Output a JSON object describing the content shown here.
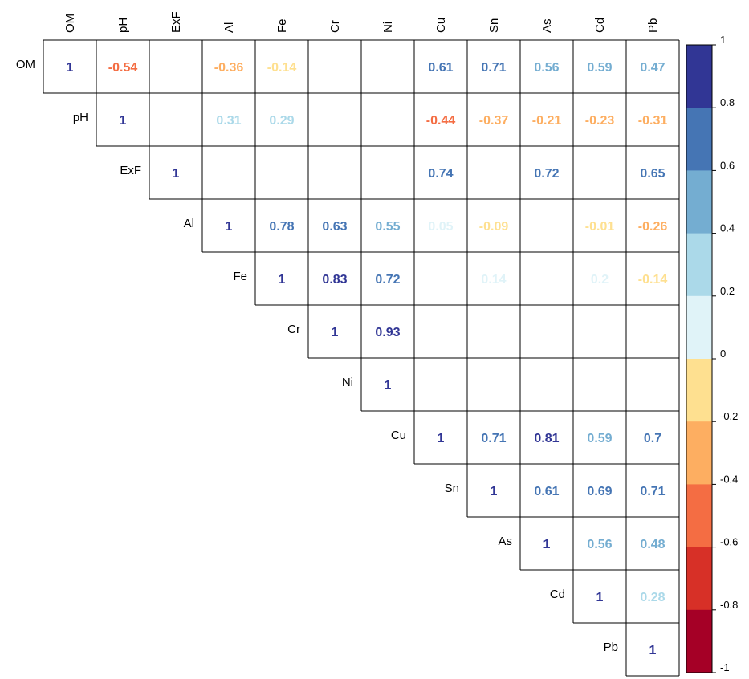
{
  "chart_data": {
    "type": "heatmap",
    "variables": [
      "OM",
      "pH",
      "ExF",
      "Al",
      "Fe",
      "Cr",
      "Ni",
      "Cu",
      "Sn",
      "As",
      "Cd",
      "Pb"
    ],
    "layout": "upper-triangle",
    "cells": [
      {
        "row": "OM",
        "col": "OM",
        "value": 1,
        "label": "1"
      },
      {
        "row": "OM",
        "col": "pH",
        "value": -0.54,
        "label": "-0.54"
      },
      {
        "row": "OM",
        "col": "Al",
        "value": -0.36,
        "label": "-0.36"
      },
      {
        "row": "OM",
        "col": "Fe",
        "value": -0.14,
        "label": "-0.14"
      },
      {
        "row": "OM",
        "col": "Cu",
        "value": 0.61,
        "label": "0.61"
      },
      {
        "row": "OM",
        "col": "Sn",
        "value": 0.71,
        "label": "0.71"
      },
      {
        "row": "OM",
        "col": "As",
        "value": 0.56,
        "label": "0.56"
      },
      {
        "row": "OM",
        "col": "Cd",
        "value": 0.59,
        "label": "0.59"
      },
      {
        "row": "OM",
        "col": "Pb",
        "value": 0.47,
        "label": "0.47"
      },
      {
        "row": "pH",
        "col": "pH",
        "value": 1,
        "label": "1"
      },
      {
        "row": "pH",
        "col": "Al",
        "value": 0.31,
        "label": "0.31"
      },
      {
        "row": "pH",
        "col": "Fe",
        "value": 0.29,
        "label": "0.29"
      },
      {
        "row": "pH",
        "col": "Cu",
        "value": -0.44,
        "label": "-0.44"
      },
      {
        "row": "pH",
        "col": "Sn",
        "value": -0.37,
        "label": "-0.37"
      },
      {
        "row": "pH",
        "col": "As",
        "value": -0.21,
        "label": "-0.21"
      },
      {
        "row": "pH",
        "col": "Cd",
        "value": -0.23,
        "label": "-0.23"
      },
      {
        "row": "pH",
        "col": "Pb",
        "value": -0.31,
        "label": "-0.31"
      },
      {
        "row": "ExF",
        "col": "ExF",
        "value": 1,
        "label": "1"
      },
      {
        "row": "ExF",
        "col": "Cu",
        "value": 0.74,
        "label": "0.74"
      },
      {
        "row": "ExF",
        "col": "As",
        "value": 0.72,
        "label": "0.72"
      },
      {
        "row": "ExF",
        "col": "Pb",
        "value": 0.65,
        "label": "0.65"
      },
      {
        "row": "Al",
        "col": "Al",
        "value": 1,
        "label": "1"
      },
      {
        "row": "Al",
        "col": "Fe",
        "value": 0.78,
        "label": "0.78"
      },
      {
        "row": "Al",
        "col": "Cr",
        "value": 0.63,
        "label": "0.63"
      },
      {
        "row": "Al",
        "col": "Ni",
        "value": 0.55,
        "label": "0.55"
      },
      {
        "row": "Al",
        "col": "Cu",
        "value": 0.05,
        "label": "0.05"
      },
      {
        "row": "Al",
        "col": "Sn",
        "value": -0.09,
        "label": "-0.09"
      },
      {
        "row": "Al",
        "col": "Cd",
        "value": -0.01,
        "label": "-0.01"
      },
      {
        "row": "Al",
        "col": "Pb",
        "value": -0.26,
        "label": "-0.26"
      },
      {
        "row": "Fe",
        "col": "Fe",
        "value": 1,
        "label": "1"
      },
      {
        "row": "Fe",
        "col": "Cr",
        "value": 0.83,
        "label": "0.83"
      },
      {
        "row": "Fe",
        "col": "Ni",
        "value": 0.72,
        "label": "0.72"
      },
      {
        "row": "Fe",
        "col": "Sn",
        "value": 0.14,
        "label": "0.14"
      },
      {
        "row": "Fe",
        "col": "Cd",
        "value": 0.2,
        "label": "0.2"
      },
      {
        "row": "Fe",
        "col": "Pb",
        "value": -0.14,
        "label": "-0.14"
      },
      {
        "row": "Cr",
        "col": "Cr",
        "value": 1,
        "label": "1"
      },
      {
        "row": "Cr",
        "col": "Ni",
        "value": 0.93,
        "label": "0.93"
      },
      {
        "row": "Ni",
        "col": "Ni",
        "value": 1,
        "label": "1"
      },
      {
        "row": "Cu",
        "col": "Cu",
        "value": 1,
        "label": "1"
      },
      {
        "row": "Cu",
        "col": "Sn",
        "value": 0.71,
        "label": "0.71"
      },
      {
        "row": "Cu",
        "col": "As",
        "value": 0.81,
        "label": "0.81"
      },
      {
        "row": "Cu",
        "col": "Cd",
        "value": 0.59,
        "label": "0.59"
      },
      {
        "row": "Cu",
        "col": "Pb",
        "value": 0.7,
        "label": "0.7"
      },
      {
        "row": "Sn",
        "col": "Sn",
        "value": 1,
        "label": "1"
      },
      {
        "row": "Sn",
        "col": "As",
        "value": 0.61,
        "label": "0.61"
      },
      {
        "row": "Sn",
        "col": "Cd",
        "value": 0.69,
        "label": "0.69"
      },
      {
        "row": "Sn",
        "col": "Pb",
        "value": 0.71,
        "label": "0.71"
      },
      {
        "row": "As",
        "col": "As",
        "value": 1,
        "label": "1"
      },
      {
        "row": "As",
        "col": "Cd",
        "value": 0.56,
        "label": "0.56"
      },
      {
        "row": "As",
        "col": "Pb",
        "value": 0.48,
        "label": "0.48"
      },
      {
        "row": "Cd",
        "col": "Cd",
        "value": 1,
        "label": "1"
      },
      {
        "row": "Cd",
        "col": "Pb",
        "value": 0.28,
        "label": "0.28"
      },
      {
        "row": "Pb",
        "col": "Pb",
        "value": 1,
        "label": "1"
      }
    ],
    "color_scale": {
      "range": [
        -1,
        1
      ],
      "ticks": [
        "1",
        "0.8",
        "0.6",
        "0.4",
        "0.2",
        "0",
        "-0.2",
        "-0.4",
        "-0.6",
        "-0.8",
        "-1"
      ],
      "bins_top_to_bottom": [
        "#313695",
        "#4575b4",
        "#74add1",
        "#abd9e9",
        "#e0f3f8",
        "#fee090",
        "#fdae61",
        "#f46d43",
        "#d73027",
        "#a50026"
      ],
      "legend_placement": "right"
    }
  }
}
